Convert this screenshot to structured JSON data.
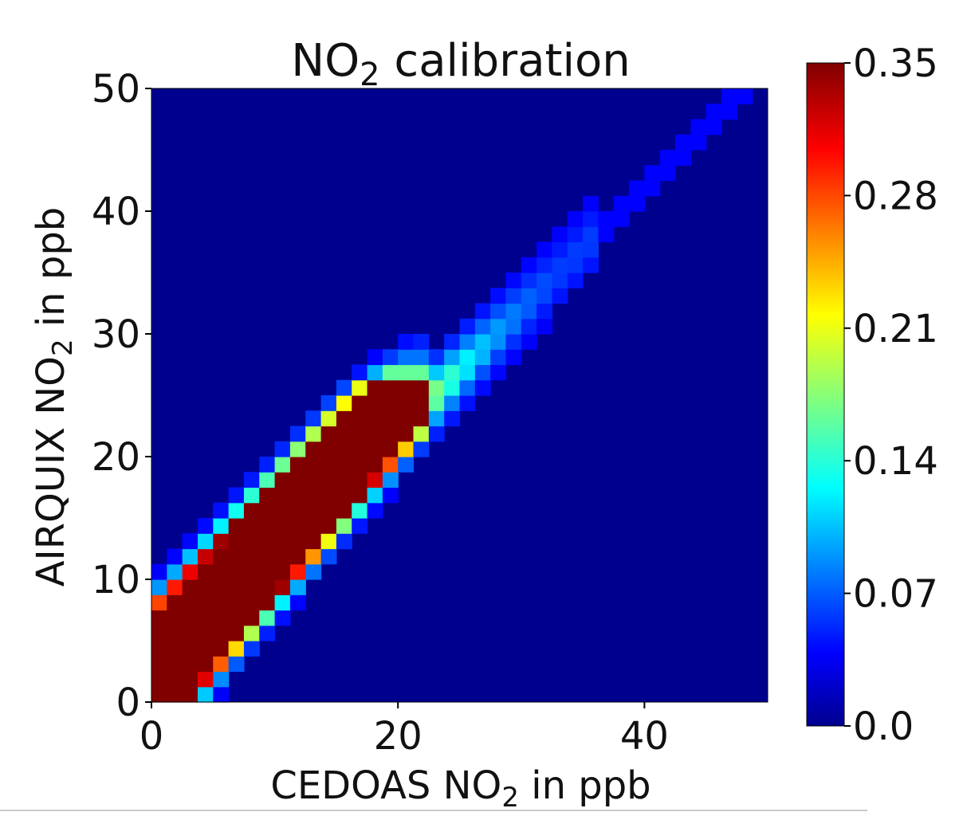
{
  "chart_data": {
    "type": "heatmap",
    "title": {
      "main": "NO",
      "sub": "2",
      "rest": " calibration"
    },
    "xlabel": {
      "main": "CEDOAS NO",
      "sub": "2",
      "rest": " in ppb"
    },
    "ylabel": {
      "main": "AIRQUIX NO",
      "sub": "2",
      "rest": " in ppb"
    },
    "xlim": [
      0,
      50
    ],
    "ylim": [
      0,
      50
    ],
    "bin_size": 1.25,
    "x_ticks": [
      0,
      20,
      40
    ],
    "x_tick_labels": [
      "0",
      "20",
      "40"
    ],
    "y_ticks": [
      0,
      10,
      20,
      30,
      40,
      50
    ],
    "y_tick_labels": [
      "0",
      "10",
      "20",
      "30",
      "40",
      "50"
    ],
    "colormap": "jet",
    "background_color": "#00008f",
    "colorbar": {
      "min": 0.0,
      "max": 0.35,
      "ticks": [
        0.0,
        0.07,
        0.14,
        0.21,
        0.28,
        0.35
      ],
      "tick_labels": [
        "0.0",
        "0.07",
        "0.14",
        "0.21",
        "0.28",
        "0.35"
      ]
    },
    "density_ridge": {
      "description_units": "ppb (y as function of x along band)",
      "core_upper_edge": [
        [
          0,
          5.5
        ],
        [
          10,
          13
        ],
        [
          18,
          20
        ],
        [
          21,
          24
        ]
      ],
      "core_lower_edge": [
        [
          3,
          0
        ],
        [
          10,
          5.5
        ],
        [
          16,
          13
        ],
        [
          20,
          19
        ]
      ],
      "tail_to": [
        35,
        41
      ]
    },
    "grid": false,
    "legend": "none"
  }
}
